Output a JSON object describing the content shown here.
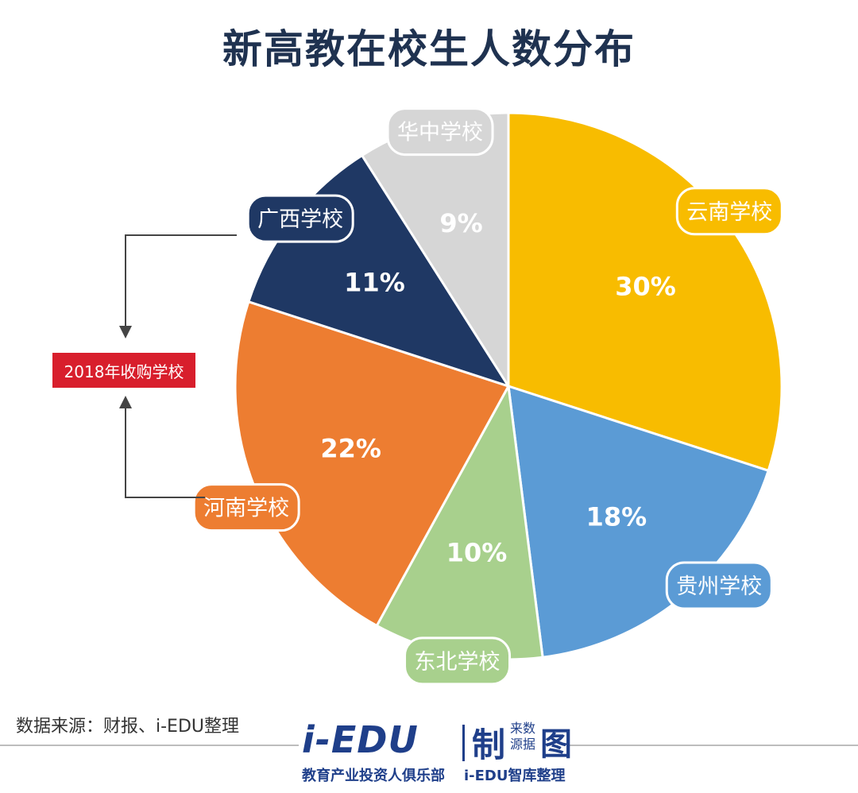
{
  "chart_data": {
    "type": "pie",
    "title": "新高教在校生人数分布",
    "slices": [
      {
        "label": "云南学校",
        "value": 30,
        "display": "30%",
        "color": "#f8bc00"
      },
      {
        "label": "贵州学校",
        "value": 18,
        "display": "18%",
        "color": "#5b9bd5"
      },
      {
        "label": "东北学校",
        "value": 10,
        "display": "10%",
        "color": "#a8d08d"
      },
      {
        "label": "河南学校",
        "value": 22,
        "display": "22%",
        "color": "#ed7d31"
      },
      {
        "label": "广西学校",
        "value": 11,
        "display": "11%",
        "color": "#1f3864"
      },
      {
        "label": "华中学校",
        "value": 9,
        "display": "9%",
        "color": "#d6d6d6"
      }
    ],
    "callout": "2018年收购学校"
  },
  "source": "数据来源：财报、i-EDU整理",
  "logo": {
    "main": "i-EDU",
    "zhi": "制",
    "small1": "来数",
    "small2": "源据",
    "tu": "图",
    "sub_left": "教育产业投资人俱乐部",
    "sub_right": "i-EDU智库整理"
  }
}
